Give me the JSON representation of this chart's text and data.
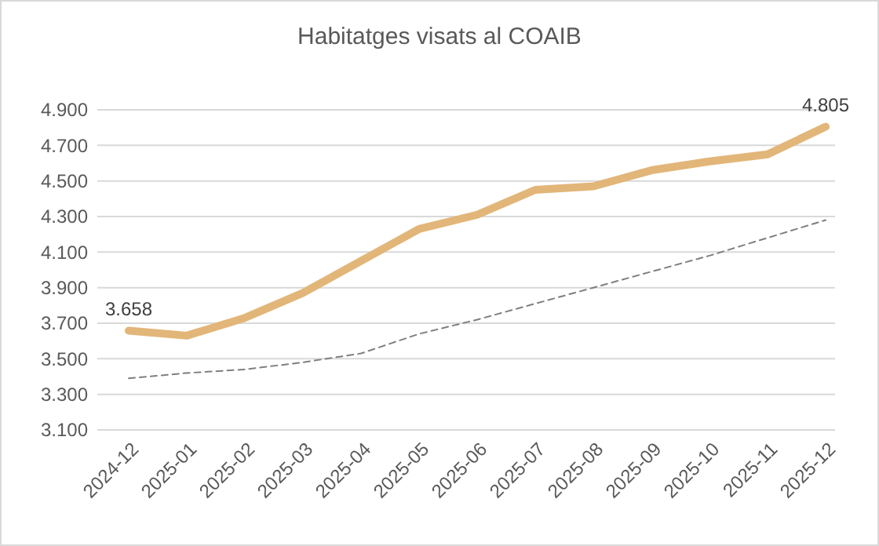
{
  "chart_data": {
    "type": "line",
    "title": "Habitatges visats al COAIB",
    "categories": [
      "2024-12",
      "2025-01",
      "2025-02",
      "2025-03",
      "2025-04",
      "2025-05",
      "2025-06",
      "2025-07",
      "2025-08",
      "2025-09",
      "2025-10",
      "2025-11",
      "2025-12"
    ],
    "series": [
      {
        "color": "#e2b679",
        "values": [
          3658,
          3630,
          3730,
          3870,
          4050,
          4230,
          4310,
          4450,
          4470,
          4560,
          4610,
          4650,
          4805
        ],
        "value_labels": [
          "3.658",
          null,
          null,
          null,
          null,
          null,
          null,
          null,
          null,
          null,
          null,
          null,
          "4.805"
        ]
      },
      {
        "color": "#7f7f7f",
        "line_style": "dashed",
        "values": [
          3390,
          3420,
          3440,
          3480,
          3530,
          3640,
          3720,
          3810,
          3900,
          3990,
          4080,
          4180,
          4280
        ]
      }
    ],
    "ylim": [
      3100,
      4900
    ],
    "yticks": [
      {
        "value": 3100,
        "label": "3.100"
      },
      {
        "value": 3300,
        "label": "3.300"
      },
      {
        "value": 3500,
        "label": "3.500"
      },
      {
        "value": 3700,
        "label": "3.700"
      },
      {
        "value": 3900,
        "label": "3.900"
      },
      {
        "value": 4100,
        "label": "4.100"
      },
      {
        "value": 4300,
        "label": "4.300"
      },
      {
        "value": 4500,
        "label": "4.500"
      },
      {
        "value": 4700,
        "label": "4.700"
      },
      {
        "value": 4900,
        "label": "4.900"
      }
    ],
    "grid": "y",
    "marker": "none"
  }
}
